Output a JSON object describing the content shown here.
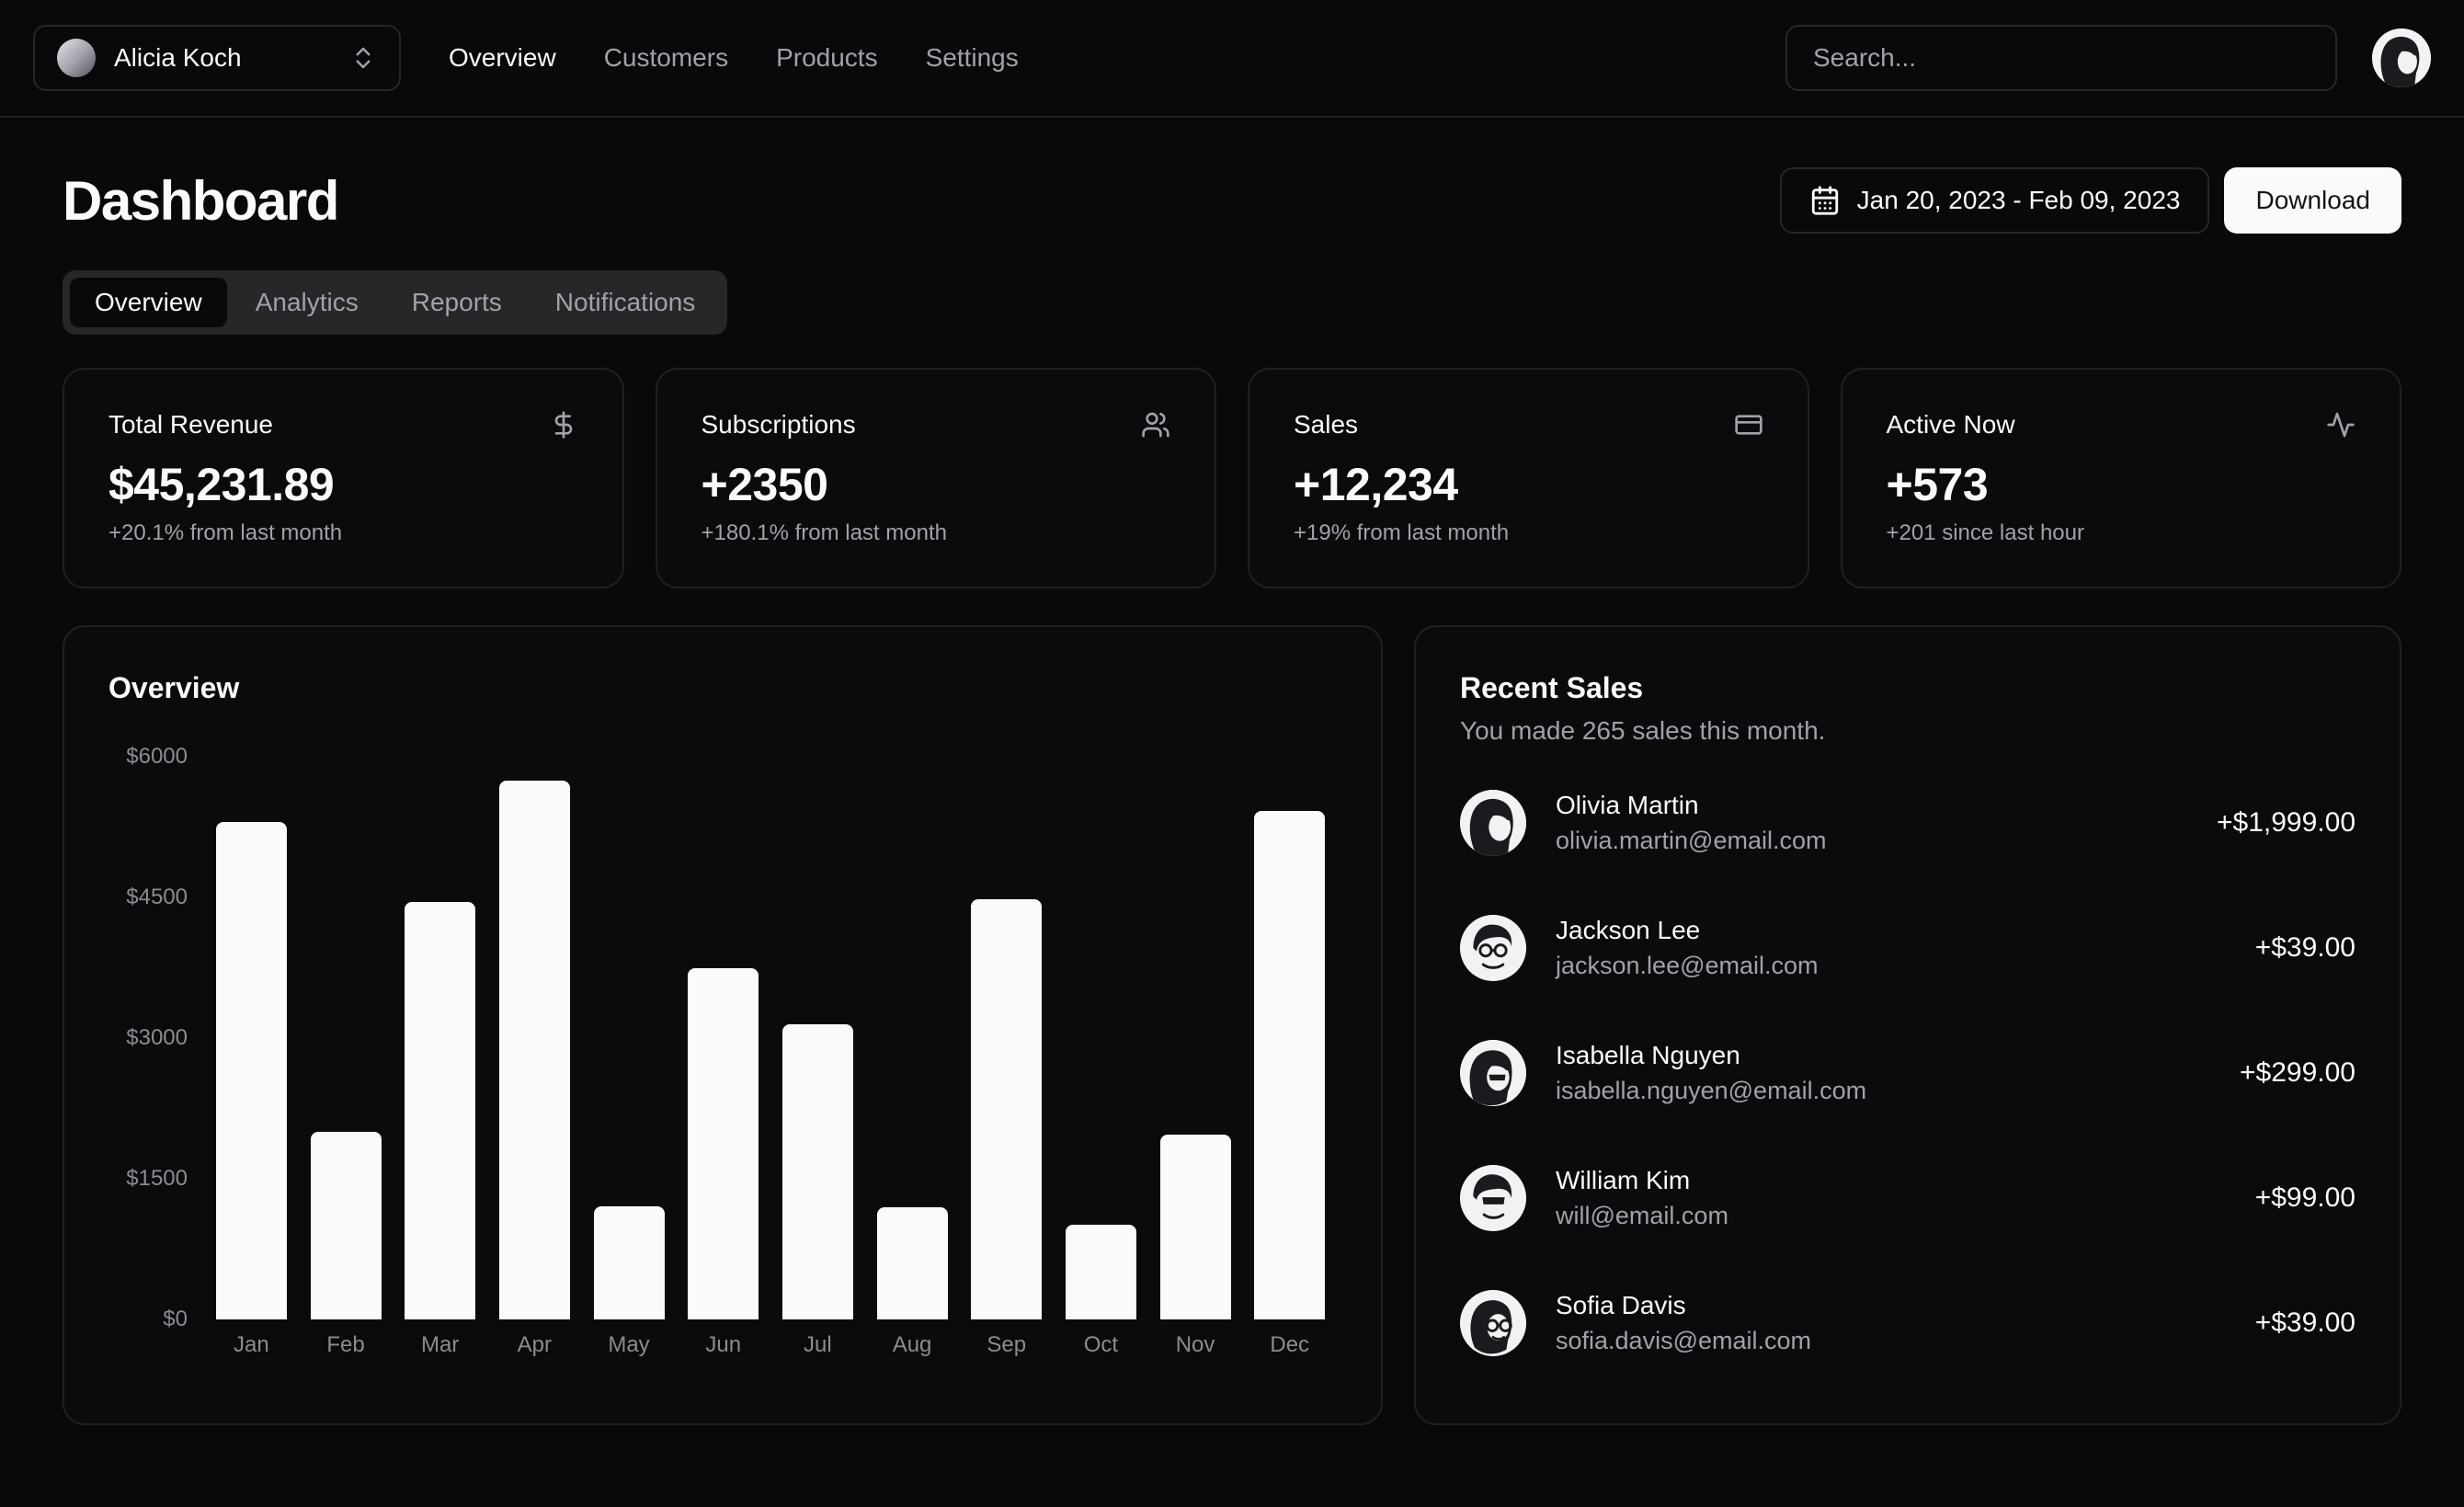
{
  "header": {
    "team_name": "Alicia Koch",
    "nav": [
      {
        "label": "Overview",
        "active": true
      },
      {
        "label": "Customers",
        "active": false
      },
      {
        "label": "Products",
        "active": false
      },
      {
        "label": "Settings",
        "active": false
      }
    ],
    "search_placeholder": "Search..."
  },
  "page": {
    "title": "Dashboard",
    "date_range": "Jan 20, 2023 - Feb 09, 2023",
    "download_label": "Download",
    "tabs": [
      {
        "label": "Overview",
        "active": true
      },
      {
        "label": "Analytics",
        "active": false
      },
      {
        "label": "Reports",
        "active": false
      },
      {
        "label": "Notifications",
        "active": false
      }
    ]
  },
  "stats": [
    {
      "title": "Total Revenue",
      "icon": "dollar-sign-icon",
      "value": "$45,231.89",
      "delta": "+20.1% from last month"
    },
    {
      "title": "Subscriptions",
      "icon": "users-icon",
      "value": "+2350",
      "delta": "+180.1% from last month"
    },
    {
      "title": "Sales",
      "icon": "credit-card-icon",
      "value": "+12,234",
      "delta": "+19% from last month"
    },
    {
      "title": "Active Now",
      "icon": "activity-icon",
      "value": "+573",
      "delta": "+201 since last hour"
    }
  ],
  "chart_data": {
    "type": "bar",
    "title": "Overview",
    "categories": [
      "Jan",
      "Feb",
      "Mar",
      "Apr",
      "May",
      "Jun",
      "Jul",
      "Aug",
      "Sep",
      "Oct",
      "Nov",
      "Dec"
    ],
    "values": [
      5300,
      2000,
      4450,
      5750,
      1210,
      3750,
      3150,
      1200,
      4480,
      1010,
      1970,
      5420
    ],
    "yticks": [
      "$6000",
      "$4500",
      "$3000",
      "$1500",
      "$0"
    ],
    "ylim": [
      0,
      6000
    ],
    "xlabel": "",
    "ylabel": "",
    "grid": false,
    "legend": "none",
    "bar_color": "#fafafa"
  },
  "recent_sales": {
    "title": "Recent Sales",
    "subtitle": "You made 265 sales this month.",
    "items": [
      {
        "name": "Olivia Martin",
        "email": "olivia.martin@email.com",
        "amount": "+$1,999.00"
      },
      {
        "name": "Jackson Lee",
        "email": "jackson.lee@email.com",
        "amount": "+$39.00"
      },
      {
        "name": "Isabella Nguyen",
        "email": "isabella.nguyen@email.com",
        "amount": "+$299.00"
      },
      {
        "name": "William Kim",
        "email": "will@email.com",
        "amount": "+$99.00"
      },
      {
        "name": "Sofia Davis",
        "email": "sofia.davis@email.com",
        "amount": "+$39.00"
      }
    ]
  },
  "colors": {
    "background": "#09090b",
    "card": "#0b0b0d",
    "border": "#202024",
    "text": "#fafafa",
    "muted": "#a1a1aa",
    "tab_bg": "#27272a",
    "bar": "#fafafa",
    "axis_label": "#8b8b92",
    "primary_button_bg": "#fafafa",
    "primary_button_text": "#151518"
  }
}
